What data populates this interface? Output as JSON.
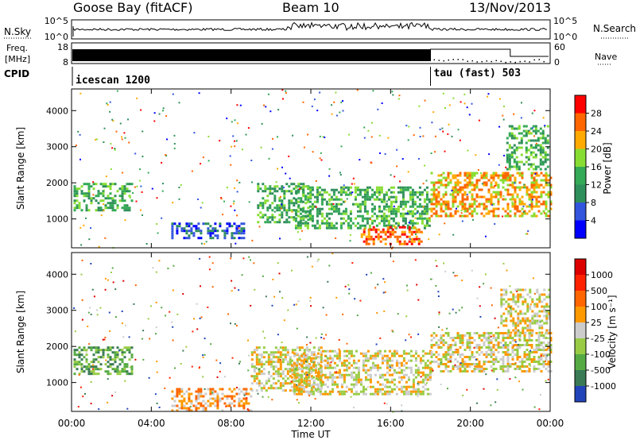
{
  "header": {
    "station": "Goose Bay (fitACF)",
    "beam": "Beam 10",
    "date": "13/Nov/2013"
  },
  "noise_panel": {
    "left_label": "N.Sky",
    "right_label": "N.Search",
    "left_ticks": [
      "10^5",
      "10^0"
    ],
    "right_ticks": [
      "10^5",
      "10^0"
    ]
  },
  "freq_panel": {
    "left_label_line1": "Freq.",
    "left_label_line2": "[MHz]",
    "right_label": "Nave",
    "left_ticks": [
      "18",
      "8"
    ],
    "right_ticks": [
      "60",
      "0"
    ]
  },
  "cpid_panel": {
    "label": "CPID",
    "segments": [
      {
        "name": "icescan 1200",
        "start_hour": 0
      },
      {
        "name": "tau (fast) 503",
        "start_hour": 18
      }
    ]
  },
  "chart_data": [
    {
      "type": "heatmap",
      "name": "power",
      "ylabel": "Slant Range [km]",
      "yticks": [
        "4000",
        "3000",
        "2000",
        "1000"
      ],
      "ylim": [
        200,
        4600
      ],
      "xlim": [
        0,
        24
      ],
      "colorbar": {
        "label": "Power [dB]",
        "ticks": [
          "28",
          "24",
          "20",
          "16",
          "12",
          "8",
          "4"
        ],
        "colors": [
          "#0000ff",
          "#3355dd",
          "#2f8f5a",
          "#33aa55",
          "#88dd33",
          "#ffaa00",
          "#ff6600",
          "#ff0000"
        ]
      },
      "regions": [
        {
          "t0": 0.1,
          "t1": 3.0,
          "r0": 1250,
          "r1": 2000,
          "level": 3
        },
        {
          "t0": 5.0,
          "t1": 8.6,
          "r0": 450,
          "r1": 900,
          "level": 1
        },
        {
          "t0": 9.3,
          "t1": 12.0,
          "r0": 900,
          "r1": 2000,
          "level": 3
        },
        {
          "t0": 11.2,
          "t1": 18.0,
          "r0": 750,
          "r1": 1900,
          "level": 3
        },
        {
          "t0": 14.5,
          "t1": 17.5,
          "r0": 300,
          "r1": 800,
          "level": 6
        },
        {
          "t0": 18.0,
          "t1": 24.0,
          "r0": 1100,
          "r1": 2300,
          "level": 5
        },
        {
          "t0": 21.8,
          "t1": 23.9,
          "r0": 2400,
          "r1": 3600,
          "level": 3
        }
      ]
    },
    {
      "type": "heatmap",
      "name": "velocity",
      "ylabel": "Slant Range [km]",
      "xlabel": "Time UT",
      "xticks": [
        "00:00",
        "04:00",
        "08:00",
        "12:00",
        "16:00",
        "20:00",
        "00:00"
      ],
      "yticks": [
        "4000",
        "3000",
        "2000",
        "1000"
      ],
      "ylim": [
        200,
        4600
      ],
      "xlim": [
        0,
        24
      ],
      "colorbar": {
        "label": "Velocity [m s⁻¹]",
        "ticks": [
          "1000",
          "500",
          "100",
          "25",
          "-25",
          "-100",
          "-500",
          "-1000"
        ],
        "colors": [
          "#2244bb",
          "#3a7a55",
          "#55aa44",
          "#99cc44",
          "#cccccc",
          "#ff9900",
          "#ff6600",
          "#ff2200",
          "#dd0000"
        ]
      },
      "regions": [
        {
          "t0": 0.1,
          "t1": 3.0,
          "r0": 1250,
          "r1": 2000,
          "level": 2
        },
        {
          "t0": 5.0,
          "t1": 9.0,
          "r0": 250,
          "r1": 850,
          "level": 5
        },
        {
          "t0": 9.0,
          "t1": 12.5,
          "r0": 800,
          "r1": 2000,
          "level": 4
        },
        {
          "t0": 11.0,
          "t1": 18.0,
          "r0": 700,
          "r1": 1900,
          "level": 4
        },
        {
          "t0": 18.0,
          "t1": 24.0,
          "r0": 1300,
          "r1": 2400,
          "level": 4
        },
        {
          "t0": 21.5,
          "t1": 23.9,
          "r0": 2400,
          "r1": 3600,
          "level": 4
        }
      ]
    }
  ]
}
